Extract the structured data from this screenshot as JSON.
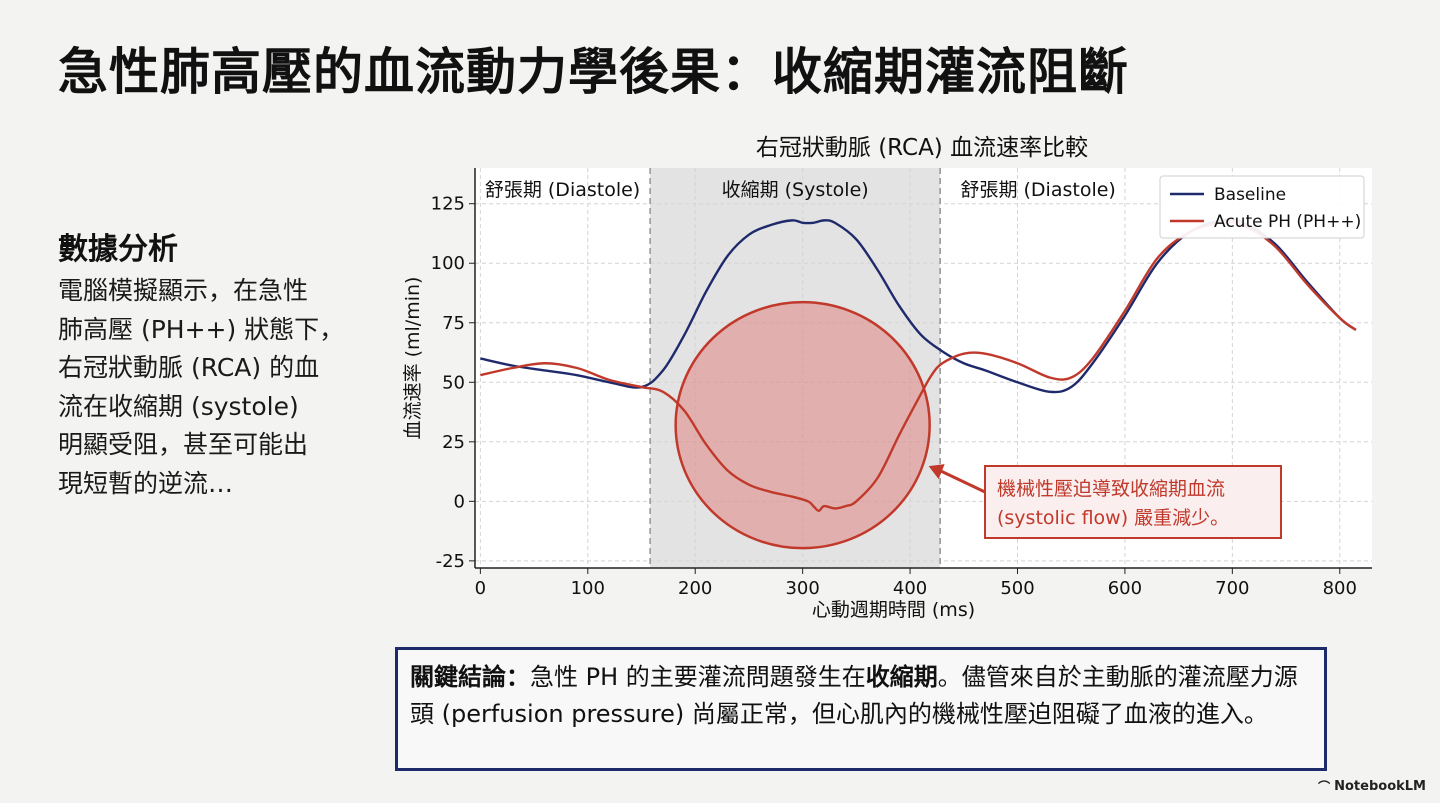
{
  "title": "急性肺高壓的血流動力學後果：收縮期灌流阻斷",
  "side": {
    "heading": "數據分析",
    "lines": [
      "電腦模擬顯示，在急性",
      "肺高壓 (PH++) 狀態下，",
      "右冠狀動脈 (RCA) 的血",
      "流在收縮期 (systole)",
      "明顯受阻，甚至可能出",
      "現短暫的逆流…"
    ]
  },
  "conclusion": {
    "label": "關鍵結論：",
    "text_1": "急性 PH 的主要灌流問題發生在",
    "bold_2": "收縮期",
    "text_3": "。儘管來自於主動脈的灌流壓力源頭 (perfusion pressure) 尚屬正常，但心肌內的機械性壓迫阻礙了血液的進入。"
  },
  "brand": {
    "name": "NotebookLM",
    "icon": "notebooklm-logo-icon"
  },
  "chart_data": {
    "type": "line",
    "title": "右冠狀動脈 (RCA) 血流速率比較",
    "xlabel": "心動週期時間 (ms)",
    "ylabel": "血流速率 (ml/min)",
    "xlim": [
      -5,
      830
    ],
    "ylim": [
      -28,
      140
    ],
    "xticks": [
      0,
      100,
      200,
      300,
      400,
      500,
      600,
      700,
      800
    ],
    "yticks": [
      -25,
      0,
      25,
      50,
      75,
      100,
      125
    ],
    "grid": true,
    "legend_position": "top-right",
    "phases": [
      {
        "label": "舒張期 (Diastole)",
        "x0": -5,
        "x1": 158,
        "shaded": false
      },
      {
        "label": "收縮期 (Systole)",
        "x0": 158,
        "x1": 428,
        "shaded": true
      },
      {
        "label": "舒張期 (Diastole)",
        "x0": 428,
        "x1": 830,
        "shaded": false
      }
    ],
    "series": [
      {
        "name": "Baseline",
        "color": "#1e2a6b",
        "x": [
          0,
          30,
          60,
          90,
          120,
          150,
          170,
          190,
          210,
          230,
          250,
          270,
          290,
          300,
          310,
          320,
          330,
          350,
          370,
          390,
          410,
          430,
          450,
          470,
          500,
          530,
          550,
          570,
          600,
          630,
          660,
          690,
          710,
          740,
          770,
          800,
          815
        ],
        "y": [
          60,
          57,
          55,
          53,
          50,
          48,
          55,
          70,
          88,
          103,
          112,
          116,
          118,
          117,
          117,
          118,
          117,
          110,
          97,
          82,
          70,
          63,
          58,
          55,
          50,
          46,
          48,
          58,
          78,
          100,
          113,
          118,
          117,
          108,
          92,
          77,
          72
        ]
      },
      {
        "name": "Acute PH (PH++)",
        "color": "#c0392b",
        "x": [
          0,
          30,
          60,
          90,
          120,
          150,
          170,
          190,
          210,
          230,
          250,
          270,
          290,
          305,
          310,
          315,
          320,
          330,
          340,
          350,
          370,
          390,
          410,
          420,
          430,
          450,
          470,
          500,
          530,
          550,
          570,
          600,
          630,
          660,
          690,
          710,
          740,
          770,
          800,
          815
        ],
        "y": [
          53,
          56,
          58,
          56,
          51,
          48,
          46,
          38,
          24,
          13,
          7,
          4,
          2,
          0,
          -2,
          -4,
          -2,
          -3,
          -2,
          0,
          10,
          28,
          45,
          53,
          58,
          62,
          62,
          58,
          52,
          52,
          60,
          80,
          102,
          113,
          117,
          116,
          107,
          91,
          77,
          72
        ]
      }
    ],
    "annotation": {
      "text_line_1": "機械性壓迫導致收縮期血流",
      "text_line_2": "(systolic flow) 嚴重減少。",
      "circle_center": [
        300,
        32
      ],
      "color": "#c0392b"
    }
  }
}
